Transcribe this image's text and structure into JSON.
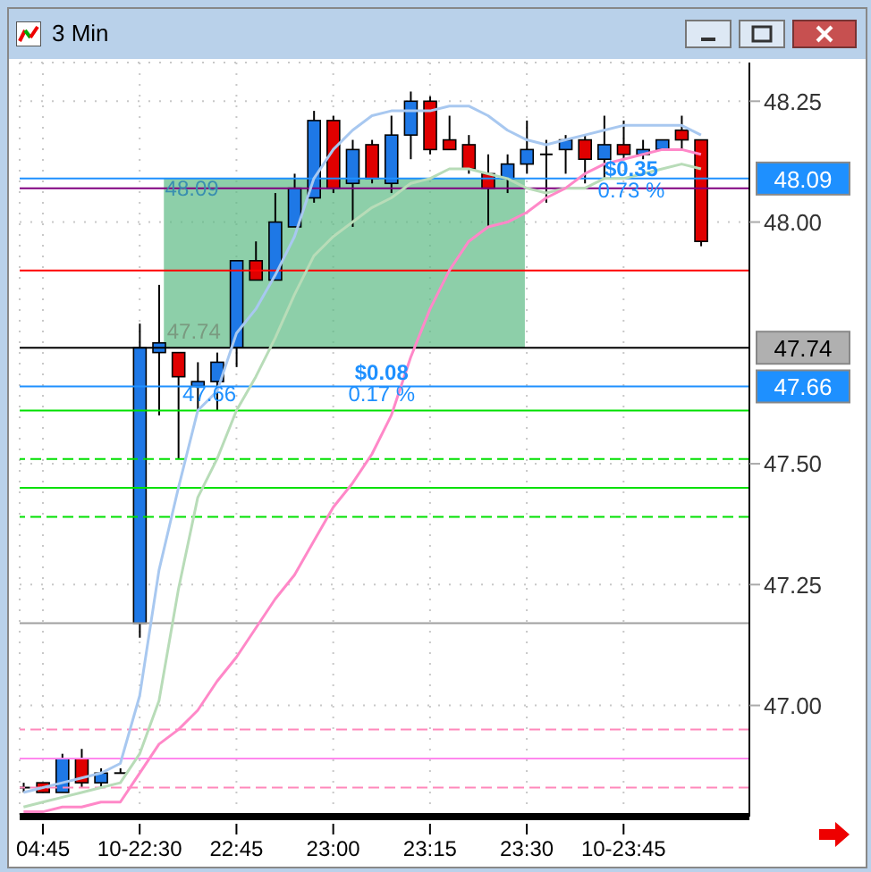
{
  "chart_data": {
    "type": "candlestick",
    "title": "3 Min",
    "categories": [
      null,
      "04:45",
      null,
      null,
      null,
      null,
      "10-22:30",
      null,
      null,
      null,
      null,
      "22:45",
      null,
      null,
      null,
      null,
      "23:00",
      null,
      null,
      null,
      null,
      "23:15",
      null,
      null,
      null,
      null,
      "23:30",
      null,
      null,
      null,
      null,
      "10-23:45",
      null,
      null,
      null,
      null
    ],
    "ohlc": [
      [
        46.83,
        46.84,
        46.82,
        46.83
      ],
      [
        46.84,
        46.84,
        46.82,
        46.82
      ],
      [
        46.82,
        46.9,
        46.82,
        46.89
      ],
      [
        46.89,
        46.91,
        46.83,
        46.84
      ],
      [
        46.84,
        46.87,
        46.83,
        46.86
      ],
      [
        46.86,
        46.87,
        46.86,
        46.86
      ],
      [
        47.17,
        47.79,
        47.14,
        47.74
      ],
      [
        47.73,
        47.87,
        47.6,
        47.75
      ],
      [
        47.73,
        47.73,
        47.51,
        47.68
      ],
      [
        47.66,
        47.71,
        47.61,
        47.67
      ],
      [
        47.67,
        47.73,
        47.61,
        47.71
      ],
      [
        47.74,
        47.92,
        47.7,
        47.92
      ],
      [
        47.92,
        47.96,
        47.88,
        47.88
      ],
      [
        47.88,
        48.06,
        47.88,
        48
      ],
      [
        47.99,
        48.1,
        47.99,
        48.07
      ],
      [
        48.05,
        48.23,
        48.04,
        48.21
      ],
      [
        48.21,
        48.22,
        48.06,
        48.07
      ],
      [
        48.08,
        48.17,
        47.99,
        48.15
      ],
      [
        48.16,
        48.17,
        48.08,
        48.09
      ],
      [
        48.08,
        48.22,
        48.06,
        48.18
      ],
      [
        48.18,
        48.27,
        48.13,
        48.25
      ],
      [
        48.25,
        48.26,
        48.14,
        48.15
      ],
      [
        48.17,
        48.22,
        48.15,
        48.15
      ],
      [
        48.16,
        48.18,
        48.1,
        48.11
      ],
      [
        48.1,
        48.14,
        47.99,
        48.07
      ],
      [
        48.09,
        48.14,
        48.06,
        48.12
      ],
      [
        48.12,
        48.21,
        48.1,
        48.15
      ],
      [
        48.14,
        48.17,
        48.04,
        48.14
      ],
      [
        48.15,
        48.18,
        48.1,
        48.17
      ],
      [
        48.17,
        48.18,
        48.08,
        48.13
      ],
      [
        48.13,
        48.22,
        48.09,
        48.16
      ],
      [
        48.16,
        48.21,
        48.13,
        48.14
      ],
      [
        48.14,
        48.17,
        48.13,
        48.15
      ],
      [
        48.15,
        48.17,
        48.15,
        48.17
      ],
      [
        48.19,
        48.22,
        48.15,
        48.17
      ],
      [
        48.17,
        48.17,
        47.95,
        47.96
      ]
    ],
    "colors": [
      "#000000",
      "#e00000",
      "#1e78e6",
      "#e00000",
      "#1e78e6",
      "#000000",
      "#1e78e6",
      "#1e78e6",
      "#e00000",
      "#1e78e6",
      "#1e78e6",
      "#1e78e6",
      "#e00000",
      "#1e78e6",
      "#1e78e6",
      "#1e78e6",
      "#e00000",
      "#1e78e6",
      "#e00000",
      "#1e78e6",
      "#1e78e6",
      "#e00000",
      "#e00000",
      "#e00000",
      "#e00000",
      "#1e78e6",
      "#1e78e6",
      "#000000",
      "#1e78e6",
      "#e00000",
      "#1e78e6",
      "#e00000",
      "#1e78e6",
      "#1e78e6",
      "#e00000",
      "#e00000"
    ],
    "series": [
      {
        "type": "line",
        "color": "#a8c8f0",
        "values": [
          46.82,
          46.83,
          46.84,
          46.85,
          46.86,
          46.88,
          47.02,
          47.28,
          47.45,
          47.61,
          47.65,
          47.77,
          47.82,
          47.89,
          47.97,
          48.09,
          48.15,
          48.19,
          48.22,
          48.23,
          48.23,
          48.23,
          48.24,
          48.24,
          48.22,
          48.19,
          48.17,
          48.16,
          48.17,
          48.18,
          48.19,
          48.2,
          48.2,
          48.2,
          48.2,
          48.18
        ]
      },
      {
        "type": "line",
        "color": "#b8dcb8",
        "values": [
          46.79,
          46.8,
          46.81,
          46.82,
          46.83,
          46.84,
          46.9,
          47.01,
          47.24,
          47.43,
          47.51,
          47.61,
          47.68,
          47.76,
          47.85,
          47.93,
          47.97,
          48,
          48.03,
          48.05,
          48.08,
          48.09,
          48.11,
          48.11,
          48.1,
          48.09,
          48.07,
          48.06,
          48.07,
          48.07,
          48.09,
          48.09,
          48.1,
          48.11,
          48.12,
          48.11
        ]
      },
      {
        "type": "line",
        "color": "#ff88c8",
        "values": [
          46.78,
          46.78,
          46.79,
          46.79,
          46.8,
          46.8,
          46.86,
          46.92,
          46.95,
          46.99,
          47.05,
          47.1,
          47.16,
          47.22,
          47.27,
          47.34,
          47.41,
          47.46,
          47.52,
          47.6,
          47.72,
          47.82,
          47.9,
          47.96,
          47.99,
          48,
          48.02,
          48.05,
          48.07,
          48.1,
          48.12,
          48.13,
          48.14,
          48.15,
          48.15,
          48.14
        ]
      }
    ],
    "ylim": [
      46.77,
      48.33
    ],
    "yticks": [
      {
        "value": 47,
        "label": "47.00"
      },
      {
        "value": 47.25,
        "label": "47.25"
      },
      {
        "value": 47.5,
        "label": "47.50"
      },
      {
        "value": 48,
        "label": "48.00"
      },
      {
        "value": 48.25,
        "label": "48.25"
      }
    ],
    "grid": true,
    "ref_lines": [
      {
        "axis": "y",
        "value": 48.09,
        "label": "48.09",
        "color": "#1e90ff"
      },
      {
        "axis": "y",
        "value": 48.07,
        "color": "#800080"
      },
      {
        "axis": "y",
        "value": 47.9,
        "color": "#ff0000"
      },
      {
        "axis": "y",
        "value": 47.74,
        "label": "47.74",
        "color": "#000000"
      },
      {
        "axis": "y",
        "value": 47.66,
        "label": "47.66",
        "color": "#1e90ff"
      },
      {
        "axis": "y",
        "value": 47.61,
        "color": "#00e000"
      },
      {
        "axis": "y",
        "value": 47.51,
        "color": "#00e000",
        "line_style": "dashed"
      },
      {
        "axis": "y",
        "value": 47.45,
        "color": "#00e000"
      },
      {
        "axis": "y",
        "value": 47.39,
        "color": "#00e000",
        "line_style": "dashed"
      },
      {
        "axis": "y",
        "value": 47.17,
        "color": "#a0a0a0"
      },
      {
        "axis": "y",
        "value": 46.95,
        "color": "#ff88bb",
        "line_style": "dashed"
      },
      {
        "axis": "y",
        "value": 46.89,
        "color": "#ff88ee"
      },
      {
        "axis": "y",
        "value": 46.83,
        "color": "#ff88bb",
        "line_style": "dashed"
      }
    ],
    "bands": [
      {
        "axis": "y",
        "from": 47.74,
        "to": 48.09,
        "color": "#5dbb85"
      }
    ],
    "annotations": [
      {
        "text": "48.09",
        "y": 48.07
      },
      "47.74",
      {
        "text": "47.66",
        "y": 47.645
      },
      "$0.08",
      {
        "text": "0.17 %",
        "y": 47.645
      },
      {
        "text": "$0.35",
        "y": 48.11
      },
      {
        "text": "0.73 %",
        "y": 48.065
      }
    ]
  }
}
